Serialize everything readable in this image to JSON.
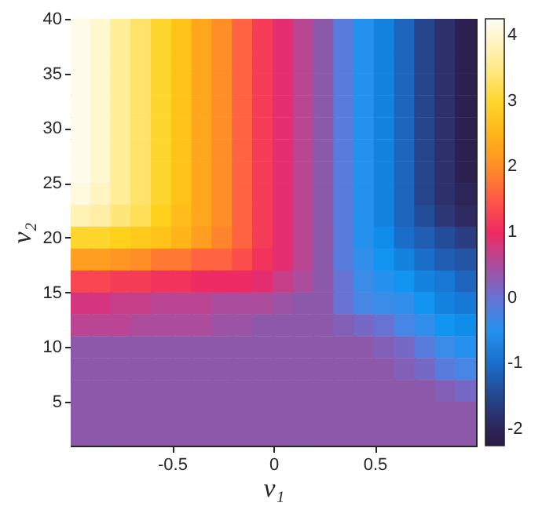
{
  "chart_data": {
    "type": "scatter",
    "xlabel": "v₁",
    "ylabel": "v₂",
    "marker": "square",
    "xlim": [
      -1,
      1
    ],
    "xticks": [
      -0.5,
      0,
      0.5
    ],
    "ylim": [
      1,
      40
    ],
    "yticks": [
      5,
      10,
      15,
      20,
      25,
      30,
      35,
      40
    ],
    "clim": [
      -2.25,
      4.25
    ],
    "cticks": [
      -2,
      -1,
      0,
      1,
      2,
      3,
      4
    ],
    "grid": false,
    "x": [
      -0.95,
      -0.85,
      -0.75,
      -0.65,
      -0.55,
      -0.45,
      -0.35,
      -0.25,
      -0.15,
      -0.05,
      0.05,
      0.15,
      0.25,
      0.35,
      0.45,
      0.55,
      0.65,
      0.75,
      0.85,
      0.95,
      -0.95,
      -0.85,
      -0.75,
      -0.65,
      -0.55,
      -0.45,
      -0.35,
      -0.25,
      -0.15,
      -0.05,
      0.05,
      0.15,
      0.25,
      0.35,
      0.45,
      0.55,
      0.65,
      0.75,
      0.85,
      0.95,
      -0.95,
      -0.85,
      -0.75,
      -0.65,
      -0.55,
      -0.45,
      -0.35,
      -0.25,
      -0.15,
      -0.05,
      0.05,
      0.15,
      0.25,
      0.35,
      0.45,
      0.55,
      0.65,
      0.75,
      0.85,
      0.95,
      -0.95,
      -0.85,
      -0.75,
      -0.65,
      -0.55,
      -0.45,
      -0.35,
      -0.25,
      -0.15,
      -0.05,
      0.05,
      0.15,
      0.25,
      0.35,
      0.45,
      0.55,
      0.65,
      0.75,
      0.85,
      0.95,
      -0.95,
      -0.85,
      -0.75,
      -0.65,
      -0.55,
      -0.45,
      -0.35,
      -0.25,
      -0.15,
      -0.05,
      0.05,
      0.15,
      0.25,
      0.35,
      0.45,
      0.55,
      0.65,
      0.75,
      0.85,
      0.95,
      -0.95,
      -0.85,
      -0.75,
      -0.65,
      -0.55,
      -0.45,
      -0.35,
      -0.25,
      -0.15,
      -0.05,
      0.05,
      0.15,
      0.25,
      0.35,
      0.45,
      0.55,
      0.65,
      0.75,
      0.85,
      0.95,
      -0.95,
      -0.85,
      -0.75,
      -0.65,
      -0.55,
      -0.45,
      -0.35,
      -0.25,
      -0.15,
      -0.05,
      0.05,
      0.15,
      0.25,
      0.35,
      0.45,
      0.55,
      0.65,
      0.75,
      0.85,
      0.95,
      -0.95,
      -0.85,
      -0.75,
      -0.65,
      -0.55,
      -0.45,
      -0.35,
      -0.25,
      -0.15,
      -0.05,
      0.05,
      0.15,
      0.25,
      0.35,
      0.45,
      0.55,
      0.65,
      0.75,
      0.85,
      0.95,
      -0.95,
      -0.85,
      -0.75,
      -0.65,
      -0.55,
      -0.45,
      -0.35,
      -0.25,
      -0.15,
      -0.05,
      0.05,
      0.15,
      0.25,
      0.35,
      0.45,
      0.55,
      0.65,
      0.75,
      0.85,
      0.95,
      -0.95,
      -0.85,
      -0.75,
      -0.65,
      -0.55,
      -0.45,
      -0.35,
      -0.25,
      -0.15,
      -0.05,
      0.05,
      0.15,
      0.25,
      0.35,
      0.45,
      0.55,
      0.65,
      0.75,
      0.85,
      0.95,
      -0.95,
      -0.85,
      -0.75,
      -0.65,
      -0.55,
      -0.45,
      -0.35,
      -0.25,
      -0.15,
      -0.05,
      0.05,
      0.15,
      0.25,
      0.35,
      0.45,
      0.55,
      0.65,
      0.75,
      0.85,
      0.95,
      -0.95,
      -0.85,
      -0.75,
      -0.65,
      -0.55,
      -0.45,
      -0.35,
      -0.25,
      -0.15,
      -0.05,
      0.05,
      0.15,
      0.25,
      0.35,
      0.45,
      0.55,
      0.65,
      0.75,
      0.85,
      0.95,
      -0.95,
      -0.85,
      -0.75,
      -0.65,
      -0.55,
      -0.45,
      -0.35,
      -0.25,
      -0.15,
      -0.05,
      0.05,
      0.15,
      0.25,
      0.35,
      0.45,
      0.55,
      0.65,
      0.75,
      0.85,
      0.95,
      -0.95,
      -0.85,
      -0.75,
      -0.65,
      -0.55,
      -0.45,
      -0.35,
      -0.25,
      -0.15,
      -0.05,
      0.05,
      0.15,
      0.25,
      0.35,
      0.45,
      0.55,
      0.65,
      0.75,
      0.85,
      0.95,
      -0.95,
      -0.85,
      -0.75,
      -0.65,
      -0.55,
      -0.45,
      -0.35,
      -0.25,
      -0.15,
      -0.05,
      0.05,
      0.15,
      0.25,
      0.35,
      0.45,
      0.55,
      0.65,
      0.75,
      0.85,
      0.95,
      -0.95,
      -0.85,
      -0.75,
      -0.65,
      -0.55,
      -0.45,
      -0.35,
      -0.25,
      -0.15,
      -0.05,
      0.05,
      0.15,
      0.25,
      0.35,
      0.45,
      0.55,
      0.65,
      0.75,
      0.85,
      0.95,
      -0.95,
      -0.85,
      -0.75,
      -0.65,
      -0.55,
      -0.45,
      -0.35,
      -0.25,
      -0.15,
      -0.05,
      0.05,
      0.15,
      0.25,
      0.35,
      0.45,
      0.55,
      0.65,
      0.75,
      0.85,
      0.95,
      -0.95,
      -0.85,
      -0.75,
      -0.65,
      -0.55,
      -0.45,
      -0.35,
      -0.25,
      -0.15,
      -0.05,
      0.05,
      0.15,
      0.25,
      0.35,
      0.45,
      0.55,
      0.65,
      0.75,
      0.85,
      0.95,
      -0.95,
      -0.85,
      -0.75,
      -0.65,
      -0.55,
      -0.45,
      -0.35,
      -0.25,
      -0.15,
      -0.05,
      0.05,
      0.15,
      0.25,
      0.35,
      0.45,
      0.55,
      0.65,
      0.75,
      0.85,
      0.95,
      -0.95,
      -0.85,
      -0.75,
      -0.65,
      -0.55,
      -0.45,
      -0.35,
      -0.25,
      -0.15,
      -0.05,
      0.05,
      0.15,
      0.25,
      0.35,
      0.45,
      0.55,
      0.65,
      0.75,
      0.85,
      0.95
    ],
    "values": [
      40,
      40,
      40,
      40,
      40,
      40,
      40,
      40,
      40,
      40,
      40,
      40,
      40,
      40,
      40,
      40,
      40,
      40,
      40,
      40,
      38,
      38,
      38,
      38,
      38,
      38,
      38,
      38,
      38,
      38,
      38,
      38,
      38,
      38,
      38,
      38,
      38,
      38,
      38,
      38,
      36,
      36,
      36,
      36,
      36,
      36,
      36,
      36,
      36,
      36,
      36,
      36,
      36,
      36,
      36,
      36,
      36,
      36,
      36,
      36,
      34,
      34,
      34,
      34,
      34,
      34,
      34,
      34,
      34,
      34,
      34,
      34,
      34,
      34,
      34,
      34,
      34,
      34,
      34,
      34,
      32,
      32,
      32,
      32,
      32,
      32,
      32,
      32,
      32,
      32,
      32,
      32,
      32,
      32,
      32,
      32,
      32,
      32,
      32,
      32,
      30,
      30,
      30,
      30,
      30,
      30,
      30,
      30,
      30,
      30,
      30,
      30,
      30,
      30,
      30,
      30,
      30,
      30,
      30,
      30,
      28,
      28,
      28,
      28,
      28,
      28,
      28,
      28,
      28,
      28,
      28,
      28,
      28,
      28,
      28,
      28,
      28,
      28,
      28,
      28,
      26,
      26,
      26,
      26,
      26,
      26,
      26,
      26,
      26,
      26,
      26,
      26,
      26,
      26,
      26,
      26,
      26,
      26,
      26,
      26,
      24,
      24,
      24,
      24,
      24,
      24,
      24,
      24,
      24,
      24,
      24,
      24,
      24,
      24,
      24,
      24,
      24,
      24,
      24,
      24,
      22,
      22,
      22,
      22,
      22,
      22,
      22,
      22,
      22,
      22,
      22,
      22,
      22,
      22,
      22,
      22,
      22,
      22,
      22,
      22,
      20,
      20,
      20,
      20,
      20,
      20,
      20,
      20,
      20,
      20,
      20,
      20,
      20,
      20,
      20,
      20,
      20,
      20,
      20,
      20,
      18,
      18,
      18,
      18,
      18,
      18,
      18,
      18,
      18,
      18,
      18,
      18,
      18,
      18,
      18,
      18,
      18,
      18,
      18,
      18,
      16,
      16,
      16,
      16,
      16,
      16,
      16,
      16,
      16,
      16,
      16,
      16,
      16,
      16,
      16,
      16,
      16,
      16,
      16,
      16,
      14,
      14,
      14,
      14,
      14,
      14,
      14,
      14,
      14,
      14,
      14,
      14,
      14,
      14,
      14,
      14,
      14,
      14,
      14,
      14,
      12,
      12,
      12,
      12,
      12,
      12,
      12,
      12,
      12,
      12,
      12,
      12,
      12,
      12,
      12,
      12,
      12,
      12,
      12,
      12,
      10,
      10,
      10,
      10,
      10,
      10,
      10,
      10,
      10,
      10,
      10,
      10,
      10,
      10,
      10,
      10,
      10,
      10,
      10,
      10,
      8,
      8,
      8,
      8,
      8,
      8,
      8,
      8,
      8,
      8,
      8,
      8,
      8,
      8,
      8,
      8,
      8,
      8,
      8,
      8,
      6,
      6,
      6,
      6,
      6,
      6,
      6,
      6,
      6,
      6,
      6,
      6,
      6,
      6,
      6,
      6,
      6,
      6,
      6,
      6,
      4,
      4,
      4,
      4,
      4,
      4,
      4,
      4,
      4,
      4,
      4,
      4,
      4,
      4,
      4,
      4,
      4,
      4,
      4,
      4,
      2,
      2,
      2,
      2,
      2,
      2,
      2,
      2,
      2,
      2,
      2,
      2,
      2,
      2,
      2,
      2,
      2,
      2,
      2,
      2
    ],
    "cvalues": [
      4.2,
      4.0,
      3.6,
      3.3,
      3.0,
      2.7,
      2.3,
      2.0,
      1.6,
      1.2,
      0.9,
      0.6,
      0.3,
      -0.1,
      -0.5,
      -0.8,
      -1.1,
      -1.5,
      -1.8,
      -2.1,
      4.2,
      4.0,
      3.6,
      3.3,
      3.0,
      2.7,
      2.3,
      2.0,
      1.6,
      1.2,
      0.9,
      0.6,
      0.3,
      -0.1,
      -0.5,
      -0.8,
      -1.1,
      -1.5,
      -1.8,
      -2.1,
      4.2,
      4.0,
      3.6,
      3.3,
      3.0,
      2.7,
      2.3,
      2.0,
      1.6,
      1.2,
      0.9,
      0.6,
      0.3,
      -0.1,
      -0.5,
      -0.8,
      -1.1,
      -1.5,
      -1.8,
      -2.1,
      4.2,
      4.0,
      3.6,
      3.3,
      3.0,
      2.7,
      2.3,
      2.0,
      1.6,
      1.2,
      0.9,
      0.6,
      0.3,
      -0.1,
      -0.5,
      -0.8,
      -1.1,
      -1.5,
      -1.8,
      -2.1,
      4.2,
      4.0,
      3.6,
      3.3,
      3.0,
      2.7,
      2.3,
      2.0,
      1.6,
      1.2,
      0.9,
      0.6,
      0.3,
      -0.1,
      -0.5,
      -0.8,
      -1.1,
      -1.5,
      -1.8,
      -2.1,
      4.2,
      4.0,
      3.6,
      3.3,
      3.0,
      2.7,
      2.3,
      2.0,
      1.6,
      1.2,
      0.9,
      0.6,
      0.3,
      -0.1,
      -0.5,
      -0.8,
      -1.1,
      -1.5,
      -1.8,
      -2.1,
      4.2,
      4.0,
      3.6,
      3.3,
      3.0,
      2.7,
      2.3,
      2.0,
      1.6,
      1.2,
      0.9,
      0.6,
      0.3,
      -0.1,
      -0.5,
      -0.8,
      -1.1,
      -1.5,
      -1.8,
      -2.1,
      4.2,
      4.0,
      3.6,
      3.3,
      3.0,
      2.7,
      2.3,
      2.0,
      1.6,
      1.2,
      0.9,
      0.6,
      0.3,
      -0.1,
      -0.5,
      -0.8,
      -1.1,
      -1.5,
      -1.8,
      -2.1,
      4.1,
      3.9,
      3.6,
      3.3,
      3.0,
      2.7,
      2.3,
      2.0,
      1.6,
      1.2,
      0.9,
      0.6,
      0.3,
      -0.1,
      -0.5,
      -0.8,
      -1.1,
      -1.5,
      -1.8,
      -2.0,
      3.8,
      3.7,
      3.4,
      3.2,
      2.9,
      2.6,
      2.3,
      2.0,
      1.6,
      1.2,
      0.9,
      0.6,
      0.3,
      -0.1,
      -0.5,
      -0.8,
      -1.1,
      -1.4,
      -1.7,
      -1.9,
      3.0,
      3.0,
      2.9,
      2.8,
      2.7,
      2.5,
      2.2,
      1.9,
      1.6,
      1.2,
      0.9,
      0.6,
      0.3,
      -0.1,
      -0.5,
      -0.7,
      -1.0,
      -1.2,
      -1.4,
      -1.6,
      2.2,
      2.2,
      2.1,
      2.0,
      1.8,
      1.8,
      1.6,
      1.6,
      1.4,
      1.1,
      0.9,
      0.6,
      0.3,
      -0.1,
      -0.4,
      -0.6,
      -0.8,
      -1.0,
      -1.2,
      -1.3,
      1.3,
      1.3,
      1.2,
      1.2,
      1.1,
      1.1,
      1.0,
      1.0,
      1.0,
      0.9,
      0.7,
      0.5,
      0.3,
      0.0,
      -0.3,
      -0.5,
      -0.6,
      -0.8,
      -0.9,
      -1.1,
      0.8,
      0.8,
      0.7,
      0.7,
      0.6,
      0.6,
      0.6,
      0.5,
      0.5,
      0.5,
      0.4,
      0.3,
      0.3,
      0.0,
      -0.2,
      -0.3,
      -0.4,
      -0.6,
      -0.8,
      -0.9,
      0.6,
      0.6,
      0.6,
      0.5,
      0.5,
      0.5,
      0.5,
      0.4,
      0.4,
      0.3,
      0.3,
      0.3,
      0.3,
      0.2,
      0.1,
      0.0,
      -0.2,
      -0.4,
      -0.6,
      -0.7,
      0.3,
      0.3,
      0.3,
      0.3,
      0.3,
      0.3,
      0.3,
      0.3,
      0.3,
      0.3,
      0.3,
      0.3,
      0.3,
      0.3,
      0.3,
      0.2,
      0.1,
      -0.1,
      -0.3,
      -0.5,
      0.3,
      0.3,
      0.3,
      0.3,
      0.3,
      0.3,
      0.3,
      0.3,
      0.3,
      0.3,
      0.3,
      0.3,
      0.3,
      0.3,
      0.3,
      0.3,
      0.2,
      0.1,
      -0.1,
      -0.2,
      0.3,
      0.3,
      0.3,
      0.3,
      0.3,
      0.3,
      0.3,
      0.3,
      0.3,
      0.3,
      0.3,
      0.3,
      0.3,
      0.3,
      0.3,
      0.3,
      0.3,
      0.3,
      0.2,
      0.1,
      0.3,
      0.3,
      0.3,
      0.3,
      0.3,
      0.3,
      0.3,
      0.3,
      0.3,
      0.3,
      0.3,
      0.3,
      0.3,
      0.3,
      0.3,
      0.3,
      0.3,
      0.3,
      0.3,
      0.3,
      0.3,
      0.3,
      0.3,
      0.3,
      0.3,
      0.3,
      0.3,
      0.3,
      0.3,
      0.3,
      0.3,
      0.3,
      0.3,
      0.3,
      0.3,
      0.3,
      0.3,
      0.3,
      0.3,
      0.3
    ]
  }
}
